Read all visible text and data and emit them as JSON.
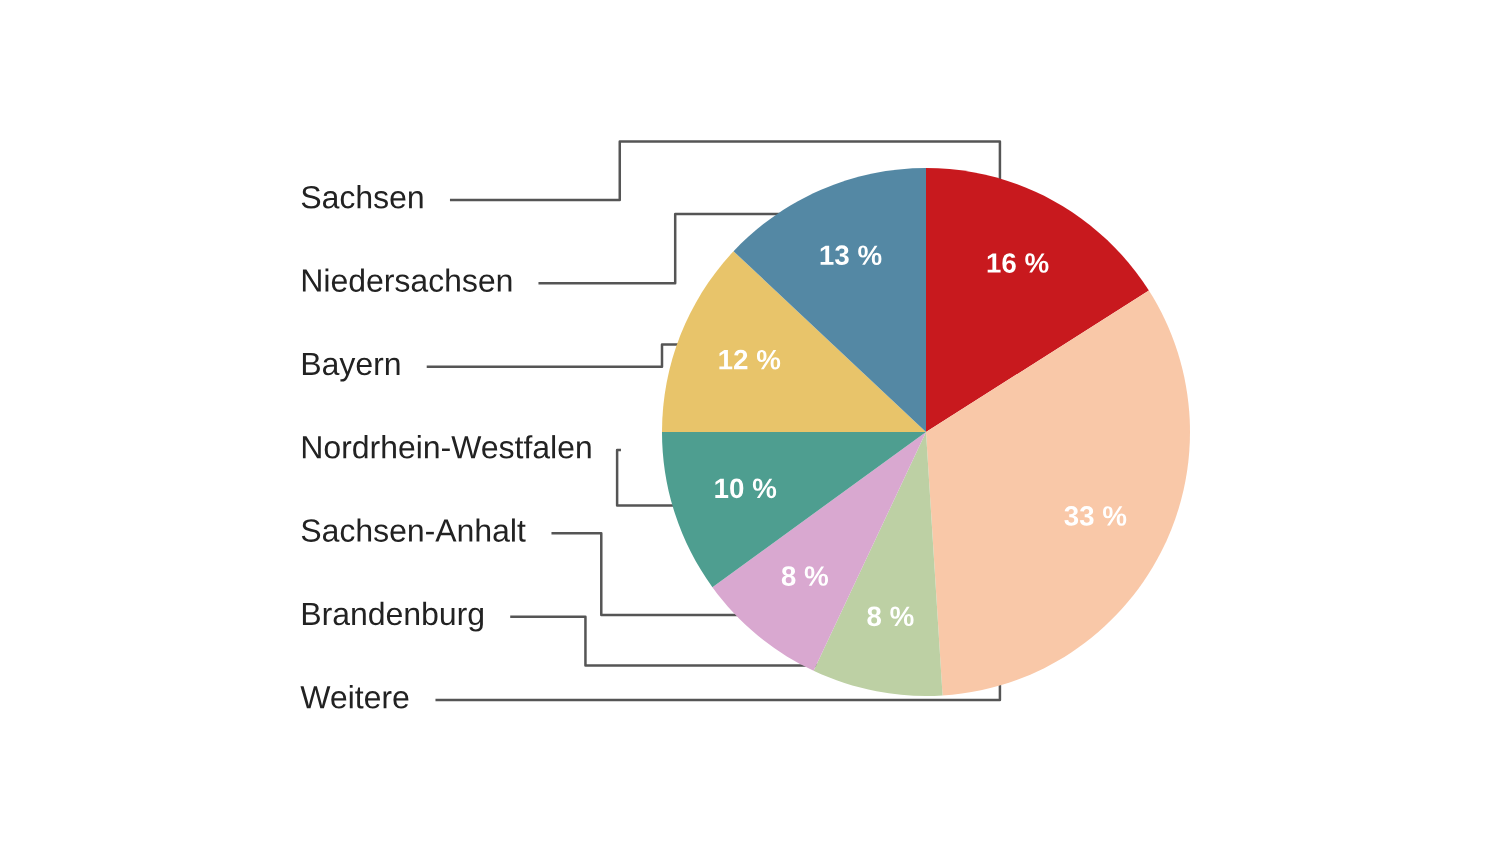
{
  "chart_data": {
    "type": "pie",
    "categories": [
      "Sachsen",
      "Weitere",
      "Brandenburg",
      "Sachsen-Anhalt",
      "Nordrhein-Westfalen",
      "Bayern",
      "Niedersachsen"
    ],
    "values": [
      16,
      33,
      8,
      8,
      10,
      12,
      13
    ],
    "colors": [
      "#c8191e",
      "#f9c8a8",
      "#bdd0a4",
      "#d9a8d0",
      "#4e9e90",
      "#e8c46a",
      "#5488a4"
    ],
    "value_labels": [
      "16 %",
      "33 %",
      "8 %",
      "8 %",
      "10 %",
      "12 %",
      "13 %"
    ]
  }
}
